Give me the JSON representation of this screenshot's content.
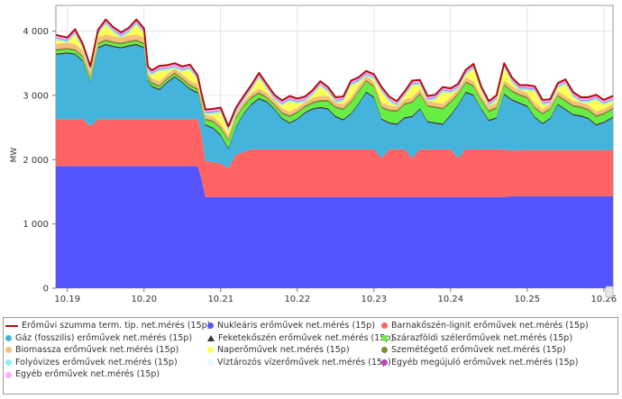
{
  "chart_data": {
    "type": "area",
    "stacked": true,
    "title": "",
    "xlabel": "",
    "ylabel": "MW",
    "ylim": [
      0,
      4400
    ],
    "yticks": [
      0,
      1000,
      2000,
      3000,
      4000
    ],
    "ytick_labels": [
      "0",
      "1 000",
      "2 000",
      "3 000",
      "4 000"
    ],
    "xlim": [
      18.85,
      26.12
    ],
    "xticks": [
      19,
      20,
      21,
      22,
      23,
      24,
      25,
      26
    ],
    "xtick_labels": [
      "10.19",
      "10.20",
      "10.21",
      "10.22",
      "10.23",
      "10.24",
      "10.25",
      "10.26"
    ],
    "grid": true,
    "legend_position": "bottom",
    "x": [
      18.85,
      19.0,
      19.1,
      19.2,
      19.3,
      19.4,
      19.5,
      19.6,
      19.7,
      19.8,
      19.9,
      20.0,
      20.05,
      20.1,
      20.2,
      20.3,
      20.4,
      20.5,
      20.6,
      20.7,
      20.75,
      20.8,
      20.9,
      21.0,
      21.1,
      21.2,
      21.3,
      21.4,
      21.5,
      21.6,
      21.7,
      21.8,
      21.9,
      22.0,
      22.1,
      22.2,
      22.3,
      22.4,
      22.5,
      22.6,
      22.7,
      22.8,
      22.9,
      23.0,
      23.1,
      23.2,
      23.3,
      23.4,
      23.5,
      23.6,
      23.7,
      23.8,
      23.9,
      24.0,
      24.1,
      24.2,
      24.3,
      24.4,
      24.5,
      24.6,
      24.7,
      24.8,
      24.9,
      25.0,
      25.1,
      25.2,
      25.3,
      25.4,
      25.5,
      25.6,
      25.7,
      25.8,
      25.9,
      26.0,
      26.12
    ],
    "series": [
      {
        "name": "Nukleáris erőművek net.mérés (15p)",
        "color": "#5555ff",
        "values": [
          1900,
          1900,
          1900,
          1900,
          1900,
          1900,
          1900,
          1900,
          1900,
          1900,
          1900,
          1900,
          1900,
          1900,
          1900,
          1900,
          1900,
          1900,
          1900,
          1900,
          1700,
          1420,
          1420,
          1420,
          1420,
          1420,
          1420,
          1420,
          1420,
          1420,
          1420,
          1420,
          1420,
          1420,
          1420,
          1420,
          1420,
          1420,
          1420,
          1420,
          1420,
          1420,
          1420,
          1420,
          1420,
          1420,
          1420,
          1420,
          1420,
          1420,
          1420,
          1420,
          1420,
          1420,
          1420,
          1420,
          1420,
          1420,
          1420,
          1420,
          1420,
          1430,
          1430,
          1430,
          1430,
          1430,
          1430,
          1430,
          1430,
          1430,
          1430,
          1430,
          1430,
          1430,
          1430
        ]
      },
      {
        "name": "Barnakőszén-lignit erőművek net.mérés (15p)",
        "color": "#ff6363",
        "values": [
          730,
          730,
          730,
          730,
          620,
          730,
          730,
          730,
          730,
          730,
          730,
          730,
          730,
          730,
          730,
          730,
          730,
          730,
          730,
          730,
          700,
          560,
          540,
          520,
          440,
          660,
          700,
          740,
          740,
          740,
          740,
          740,
          740,
          740,
          740,
          740,
          740,
          740,
          740,
          740,
          740,
          740,
          740,
          740,
          600,
          740,
          740,
          740,
          600,
          740,
          740,
          740,
          740,
          740,
          600,
          740,
          740,
          740,
          740,
          740,
          740,
          710,
          720,
          720,
          720,
          720,
          720,
          720,
          720,
          720,
          720,
          720,
          720,
          720,
          720
        ]
      },
      {
        "name": "Gáz (fosszilis) erőművek net.mérés (15p)",
        "color": "#44b4dc",
        "values": [
          1000,
          1020,
          1000,
          900,
          680,
          1100,
          1150,
          1120,
          1100,
          1130,
          1150,
          1100,
          600,
          500,
          450,
          560,
          650,
          560,
          460,
          400,
          400,
          550,
          520,
          430,
          300,
          420,
          580,
          690,
          780,
          730,
          620,
          470,
          400,
          460,
          560,
          620,
          640,
          620,
          500,
          450,
          540,
          700,
          880,
          800,
          600,
          400,
          380,
          480,
          640,
          620,
          420,
          400,
          380,
          520,
          820,
          880,
          830,
          620,
          440,
          480,
          850,
          780,
          720,
          670,
          500,
          400,
          480,
          700,
          620,
          540,
          520,
          480,
          380,
          420,
          500
        ]
      },
      {
        "name": "Feketekőszén erőművek net.mérés (15p)",
        "color": "#333333",
        "values": [
          20,
          20,
          20,
          20,
          20,
          20,
          20,
          20,
          20,
          20,
          20,
          20,
          20,
          20,
          20,
          20,
          20,
          20,
          20,
          20,
          20,
          20,
          20,
          20,
          20,
          20,
          20,
          20,
          20,
          20,
          20,
          20,
          20,
          20,
          20,
          20,
          20,
          20,
          20,
          20,
          20,
          20,
          20,
          20,
          20,
          20,
          20,
          20,
          20,
          20,
          20,
          20,
          20,
          20,
          20,
          20,
          20,
          20,
          20,
          20,
          20,
          20,
          20,
          20,
          20,
          20,
          20,
          20,
          20,
          20,
          20,
          20,
          20,
          20,
          20
        ]
      },
      {
        "name": "Szárazföldi szélerőművek net.mérés (15p)",
        "color": "#66ee44",
        "values": [
          40,
          40,
          40,
          40,
          40,
          40,
          40,
          40,
          40,
          40,
          40,
          40,
          30,
          30,
          30,
          30,
          30,
          30,
          30,
          30,
          40,
          60,
          80,
          90,
          110,
          120,
          100,
          80,
          60,
          40,
          40,
          60,
          80,
          80,
          70,
          70,
          80,
          100,
          120,
          140,
          160,
          170,
          150,
          140,
          160,
          170,
          180,
          190,
          200,
          210,
          220,
          220,
          220,
          180,
          150,
          130,
          120,
          110,
          120,
          130,
          120,
          110,
          100,
          110,
          120,
          130,
          120,
          110,
          110,
          110,
          110,
          110,
          110,
          110,
          110
        ]
      },
      {
        "name": "Szemétégető erőművek net.mérés (15p)",
        "color": "#7f8f2f",
        "values": [
          30,
          30,
          30,
          30,
          30,
          30,
          30,
          30,
          30,
          30,
          30,
          30,
          30,
          30,
          30,
          30,
          30,
          30,
          30,
          30,
          30,
          30,
          30,
          30,
          30,
          30,
          30,
          30,
          30,
          30,
          30,
          30,
          30,
          30,
          30,
          30,
          30,
          30,
          30,
          30,
          30,
          30,
          30,
          30,
          30,
          30,
          30,
          30,
          30,
          30,
          30,
          30,
          30,
          30,
          30,
          30,
          30,
          30,
          30,
          30,
          30,
          30,
          30,
          30,
          30,
          30,
          30,
          30,
          30,
          30,
          30,
          30,
          30,
          30,
          30
        ]
      },
      {
        "name": "Biomassza erőművek net.mérés (15p)",
        "color": "#f6c07a",
        "values": [
          80,
          80,
          80,
          80,
          80,
          80,
          80,
          80,
          80,
          80,
          80,
          80,
          60,
          60,
          60,
          60,
          60,
          60,
          60,
          60,
          60,
          60,
          60,
          60,
          60,
          60,
          60,
          60,
          60,
          60,
          60,
          60,
          60,
          60,
          60,
          60,
          60,
          60,
          60,
          60,
          60,
          60,
          60,
          60,
          60,
          60,
          60,
          60,
          60,
          60,
          60,
          60,
          60,
          60,
          60,
          60,
          60,
          60,
          60,
          60,
          60,
          60,
          60,
          60,
          60,
          60,
          60,
          60,
          60,
          60,
          60,
          60,
          60,
          60,
          60
        ]
      },
      {
        "name": "Naperőművek net.mérés (15p)",
        "color": "#ffff55",
        "values": [
          60,
          0,
          150,
          20,
          0,
          40,
          150,
          60,
          0,
          40,
          150,
          60,
          0,
          40,
          160,
          60,
          0,
          40,
          170,
          60,
          0,
          0,
          40,
          160,
          60,
          0,
          0,
          40,
          160,
          60,
          0,
          40,
          160,
          60,
          0,
          40,
          150,
          60,
          0,
          40,
          180,
          60,
          0,
          40,
          160,
          60,
          0,
          40,
          180,
          60,
          0,
          40,
          180,
          60,
          0,
          40,
          190,
          60,
          0,
          40,
          180,
          60,
          0,
          40,
          180,
          60,
          0,
          40,
          180,
          60,
          0,
          40,
          180,
          60,
          40
        ]
      },
      {
        "name": "Folyóvizes erőművek net.mérés (15p)",
        "color": "#8ef0f0",
        "values": [
          30,
          30,
          30,
          30,
          30,
          30,
          30,
          30,
          30,
          30,
          30,
          30,
          30,
          30,
          30,
          30,
          30,
          30,
          30,
          30,
          30,
          30,
          30,
          30,
          30,
          30,
          30,
          30,
          30,
          30,
          30,
          30,
          30,
          30,
          30,
          30,
          30,
          30,
          30,
          30,
          30,
          30,
          30,
          30,
          30,
          30,
          30,
          30,
          30,
          30,
          30,
          30,
          30,
          30,
          30,
          30,
          30,
          30,
          30,
          30,
          30,
          30,
          30,
          30,
          30,
          30,
          30,
          30,
          30,
          30,
          30,
          30,
          30,
          30,
          30
        ]
      },
      {
        "name": "Víztározós vízerőművek net.mérés (15p)",
        "color": "#e4fbff",
        "values": [
          0,
          0,
          0,
          0,
          0,
          0,
          0,
          0,
          0,
          0,
          0,
          0,
          0,
          0,
          0,
          0,
          0,
          0,
          0,
          0,
          0,
          0,
          0,
          0,
          0,
          0,
          0,
          0,
          0,
          0,
          0,
          0,
          0,
          0,
          0,
          0,
          0,
          0,
          0,
          0,
          0,
          0,
          0,
          0,
          0,
          0,
          0,
          0,
          0,
          0,
          0,
          0,
          0,
          0,
          0,
          0,
          0,
          0,
          0,
          0,
          0,
          0,
          0,
          0,
          0,
          0,
          0,
          0,
          0,
          0,
          0,
          0,
          0,
          0,
          0
        ]
      },
      {
        "name": "Egyéb megújuló erőművek net.mérés (15p)",
        "color": "#bb44bb",
        "values": [
          10,
          10,
          10,
          10,
          10,
          10,
          10,
          10,
          10,
          10,
          10,
          10,
          10,
          10,
          10,
          10,
          10,
          10,
          10,
          10,
          10,
          10,
          10,
          10,
          10,
          10,
          10,
          10,
          10,
          10,
          10,
          10,
          10,
          10,
          10,
          10,
          10,
          10,
          10,
          10,
          10,
          10,
          10,
          10,
          10,
          10,
          10,
          10,
          10,
          10,
          10,
          10,
          10,
          10,
          10,
          10,
          10,
          10,
          10,
          10,
          10,
          10,
          10,
          10,
          10,
          10,
          10,
          10,
          10,
          10,
          10,
          10,
          10,
          10,
          10
        ]
      },
      {
        "name": "Egyéb erőművek net.mérés (15p)",
        "color": "#ffaaff",
        "values": [
          40,
          40,
          40,
          40,
          40,
          40,
          40,
          40,
          40,
          40,
          40,
          40,
          40,
          40,
          40,
          40,
          40,
          40,
          40,
          40,
          40,
          40,
          40,
          40,
          40,
          40,
          40,
          40,
          40,
          40,
          40,
          40,
          40,
          40,
          40,
          40,
          40,
          40,
          40,
          40,
          40,
          40,
          40,
          40,
          40,
          40,
          40,
          40,
          40,
          40,
          40,
          40,
          40,
          40,
          40,
          40,
          40,
          40,
          40,
          40,
          40,
          40,
          40,
          40,
          40,
          40,
          40,
          40,
          40,
          40,
          40,
          40,
          40,
          40,
          40
        ]
      }
    ],
    "total_line": {
      "name": "Erőművi szumma term. tip. net.mérés (15p)",
      "color": "#aa1111"
    }
  },
  "legend": {
    "rows": [
      [
        {
          "label": "Erőművi szumma term. tip. net.mérés (15p)",
          "marker": "line",
          "color": "#aa1111"
        },
        {
          "label": "Nukleáris erőművek net.mérés (15p)",
          "marker": "dot",
          "color": "#5555ff"
        },
        {
          "label": "Barnakőszén-lignit erőművek net.mérés (15p)",
          "marker": "dot",
          "color": "#ff6363"
        }
      ],
      [
        {
          "label": "Gáz (fosszilis) erőművek net.mérés (15p)",
          "marker": "dot",
          "color": "#44b4dc"
        },
        {
          "label": "Feketekőszén erőművek net.mérés (15p)",
          "marker": "tri",
          "color": "#333333"
        },
        {
          "label": "Szárazföldi szélerőművek net.mérés (15p)",
          "marker": "dot",
          "color": "#66ee44"
        }
      ],
      [
        {
          "label": "Biomassza erőművek net.mérés (15p)",
          "marker": "dot",
          "color": "#f6c07a"
        },
        {
          "label": "Naperőművek net.mérés (15p)",
          "marker": "dot",
          "color": "#ffff55"
        },
        {
          "label": "Szemétégető erőművek net.mérés (15p)",
          "marker": "dot",
          "color": "#7f8f2f"
        }
      ],
      [
        {
          "label": "Folyóvizes erőművek net.mérés (15p)",
          "marker": "dot",
          "color": "#8ef0f0"
        },
        {
          "label": "Víztározós vízerőművek net.mérés (15p)",
          "marker": "dot",
          "color": "#e4fbff"
        },
        {
          "label": "Egyéb megújuló erőművek net.mérés (15p)",
          "marker": "dot",
          "color": "#bb44bb"
        }
      ],
      [
        {
          "label": "Egyéb erőművek net.mérés (15p)",
          "marker": "dot",
          "color": "#ffaaff"
        }
      ]
    ]
  }
}
